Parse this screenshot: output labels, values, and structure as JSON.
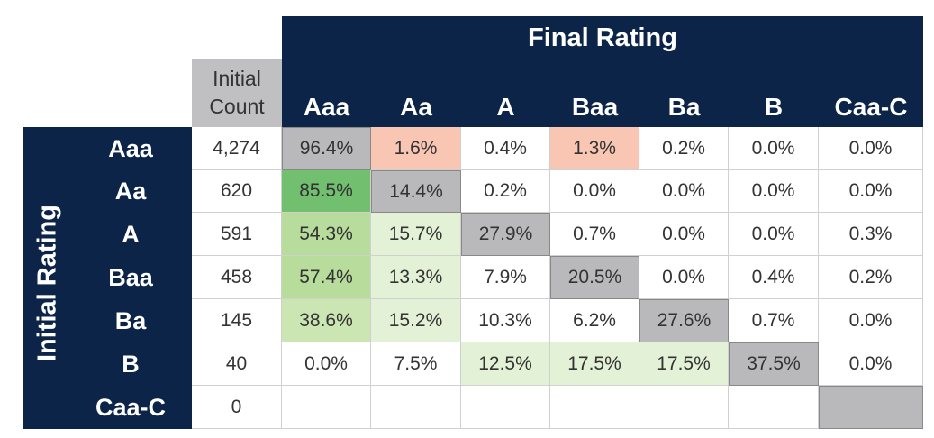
{
  "header": {
    "title": "Final Rating",
    "count_header": "Initial Count",
    "row_header": "Initial Rating"
  },
  "columns": [
    "Aaa",
    "Aa",
    "A",
    "Baa",
    "Ba",
    "B",
    "Caa-C"
  ],
  "rows": [
    {
      "label": "Aaa",
      "count": "4,274",
      "cells": [
        "96.4%",
        "1.6%",
        "0.4%",
        "1.3%",
        "0.2%",
        "0.0%",
        "0.0%"
      ]
    },
    {
      "label": "Aa",
      "count": "620",
      "cells": [
        "85.5%",
        "14.4%",
        "0.2%",
        "0.0%",
        "0.0%",
        "0.0%",
        "0.0%"
      ]
    },
    {
      "label": "A",
      "count": "591",
      "cells": [
        "54.3%",
        "15.7%",
        "27.9%",
        "0.7%",
        "0.0%",
        "0.0%",
        "0.3%"
      ]
    },
    {
      "label": "Baa",
      "count": "458",
      "cells": [
        "57.4%",
        "13.3%",
        "7.9%",
        "20.5%",
        "0.0%",
        "0.4%",
        "0.2%"
      ]
    },
    {
      "label": "Ba",
      "count": "145",
      "cells": [
        "38.6%",
        "15.2%",
        "10.3%",
        "6.2%",
        "27.6%",
        "0.7%",
        "0.0%"
      ]
    },
    {
      "label": "B",
      "count": "40",
      "cells": [
        "0.0%",
        "7.5%",
        "12.5%",
        "17.5%",
        "17.5%",
        "37.5%",
        "0.0%"
      ]
    },
    {
      "label": "Caa-C",
      "count": "0",
      "cells": []
    }
  ]
}
